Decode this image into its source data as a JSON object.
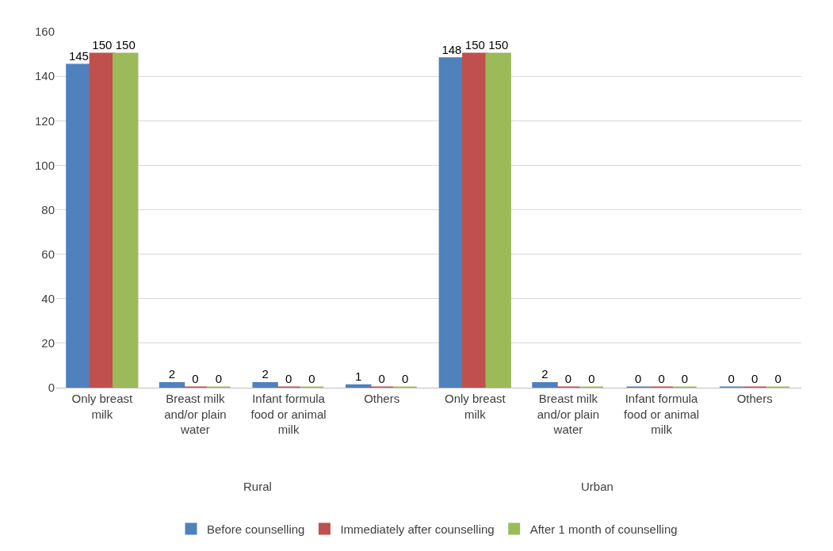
{
  "chart_data": {
    "type": "bar",
    "categories": [
      "Only breast milk",
      "Breast milk and/or plain water",
      "Infant formula food or animal milk",
      "Others",
      "Only breast milk",
      "Breast milk and/or plain water",
      "Infant formula food or animal milk",
      "Others"
    ],
    "series": [
      {
        "name": "Before counselling",
        "color": "#4f81bd",
        "values": [
          145,
          2,
          2,
          1,
          148,
          2,
          0,
          0
        ]
      },
      {
        "name": "Immediately after counselling",
        "color": "#c0504d",
        "values": [
          150,
          0,
          0,
          0,
          150,
          0,
          0,
          0
        ]
      },
      {
        "name": "After 1 month of counselling",
        "color": "#9bbb59",
        "values": [
          150,
          0,
          0,
          0,
          150,
          0,
          0,
          0
        ]
      }
    ],
    "annotations": [
      "Rural",
      "Urban"
    ],
    "ylim": [
      0,
      160
    ],
    "yticks": [
      0,
      20,
      40,
      60,
      80,
      100,
      120,
      140,
      160
    ],
    "grid": "y",
    "legend": "bottom",
    "data_labels": true
  }
}
